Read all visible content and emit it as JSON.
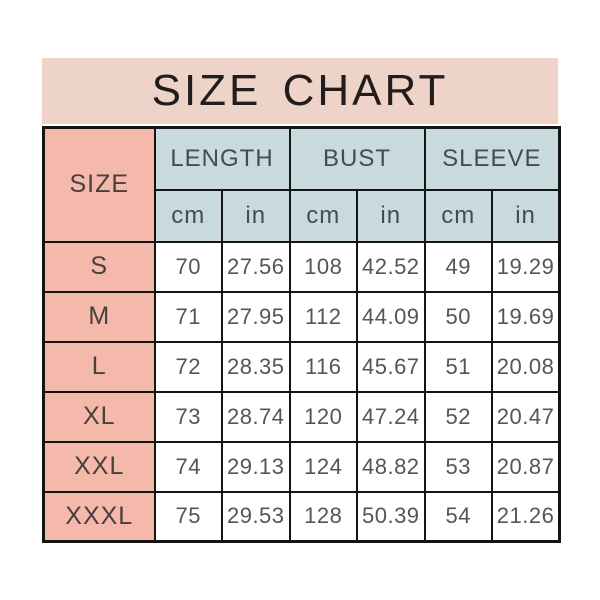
{
  "page": {
    "title": "SIZE CHART"
  },
  "colors": {
    "banner_bg": "#eed3c9",
    "size_column_bg": "#f4b9ab",
    "header_bg": "#c8dade",
    "border": "#141414",
    "title_text": "#211d1c",
    "header_text": "#3f4d58",
    "number_text": "#555555"
  },
  "table": {
    "size_header": "SIZE",
    "groups": [
      {
        "label": "LENGTH"
      },
      {
        "label": "BUST"
      },
      {
        "label": "SLEEVE"
      }
    ],
    "units": {
      "cm": "cm",
      "in": "in"
    },
    "rows": [
      {
        "size": "S",
        "length_cm": "70",
        "length_in": "27.56",
        "bust_cm": "108",
        "bust_in": "42.52",
        "sleeve_cm": "49",
        "sleeve_in": "19.29"
      },
      {
        "size": "M",
        "length_cm": "71",
        "length_in": "27.95",
        "bust_cm": "112",
        "bust_in": "44.09",
        "sleeve_cm": "50",
        "sleeve_in": "19.69"
      },
      {
        "size": "L",
        "length_cm": "72",
        "length_in": "28.35",
        "bust_cm": "116",
        "bust_in": "45.67",
        "sleeve_cm": "51",
        "sleeve_in": "20.08"
      },
      {
        "size": "XL",
        "length_cm": "73",
        "length_in": "28.74",
        "bust_cm": "120",
        "bust_in": "47.24",
        "sleeve_cm": "52",
        "sleeve_in": "20.47"
      },
      {
        "size": "XXL",
        "length_cm": "74",
        "length_in": "29.13",
        "bust_cm": "124",
        "bust_in": "48.82",
        "sleeve_cm": "53",
        "sleeve_in": "20.87"
      },
      {
        "size": "XXXL",
        "length_cm": "75",
        "length_in": "29.53",
        "bust_cm": "128",
        "bust_in": "50.39",
        "sleeve_cm": "54",
        "sleeve_in": "21.26"
      }
    ]
  },
  "chart_data": {
    "type": "table",
    "title": "SIZE CHART",
    "columns": [
      "SIZE",
      "LENGTH cm",
      "LENGTH in",
      "BUST cm",
      "BUST in",
      "SLEEVE cm",
      "SLEEVE in"
    ],
    "rows": [
      [
        "S",
        70,
        27.56,
        108,
        42.52,
        49,
        19.29
      ],
      [
        "M",
        71,
        27.95,
        112,
        44.09,
        50,
        19.69
      ],
      [
        "L",
        72,
        28.35,
        116,
        45.67,
        51,
        20.08
      ],
      [
        "XL",
        73,
        28.74,
        120,
        47.24,
        52,
        20.47
      ],
      [
        "XXL",
        74,
        29.13,
        124,
        48.82,
        53,
        20.87
      ],
      [
        "XXXL",
        75,
        29.53,
        128,
        50.39,
        54,
        21.26
      ]
    ]
  }
}
